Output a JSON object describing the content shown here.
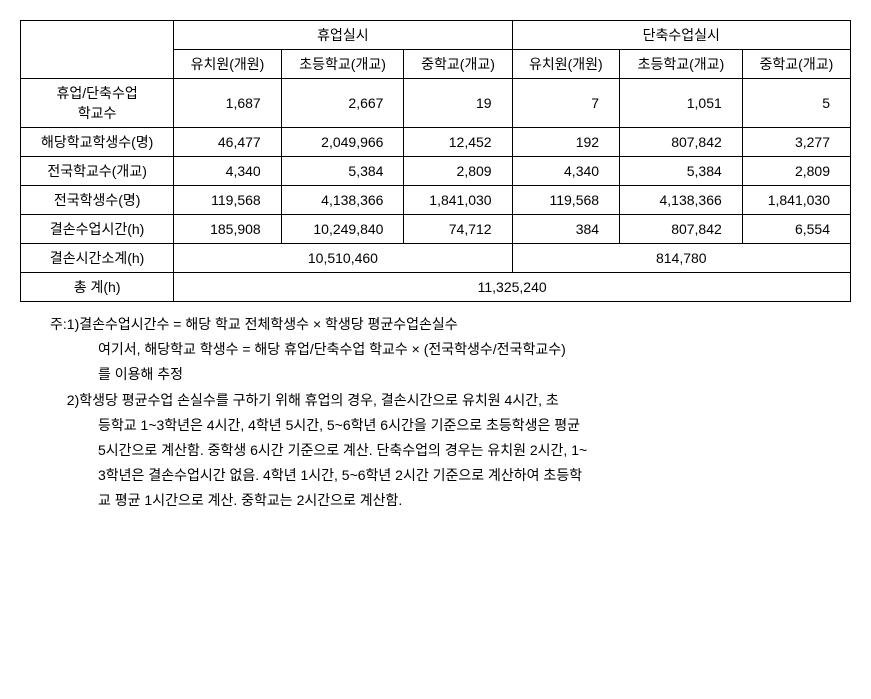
{
  "table": {
    "group_headers": [
      "휴업실시",
      "단축수업실시"
    ],
    "sub_headers": [
      "유치원(개원)",
      "초등학교(개교)",
      "중학교(개교)",
      "유치원(개원)",
      "초등학교(개교)",
      "중학교(개교)"
    ],
    "rows": [
      {
        "label": "휴업/단축수업\n학교수",
        "values": [
          "1,687",
          "2,667",
          "19",
          "7",
          "1,051",
          "5"
        ]
      },
      {
        "label": "해당학교학생수(명)",
        "values": [
          "46,477",
          "2,049,966",
          "12,452",
          "192",
          "807,842",
          "3,277"
        ]
      },
      {
        "label": "전국학교수(개교)",
        "values": [
          "4,340",
          "5,384",
          "2,809",
          "4,340",
          "5,384",
          "2,809"
        ]
      },
      {
        "label": "전국학생수(명)",
        "values": [
          "119,568",
          "4,138,366",
          "1,841,030",
          "119,568",
          "4,138,366",
          "1,841,030"
        ]
      },
      {
        "label": "결손수업시간(h)",
        "values": [
          "185,908",
          "10,249,840",
          "74,712",
          "384",
          "807,842",
          "6,554"
        ]
      }
    ],
    "subtotal": {
      "label": "결손시간소계(h)",
      "values": [
        "10,510,460",
        "814,780"
      ]
    },
    "total": {
      "label": "총 계(h)",
      "value": "11,325,240"
    }
  },
  "notes": {
    "prefix": "주: ",
    "items": [
      {
        "num": "1) ",
        "lines": [
          "결손수업시간수 = 해당 학교 전체학생수 × 학생당 평균수업손실수",
          "여기서, 해당학교 학생수 = 해당 휴업/단축수업 학교수 × (전국학생수/전국학교수)",
          "를 이용해 추정"
        ]
      },
      {
        "num": "2) ",
        "lines": [
          "학생당 평균수업 손실수를 구하기 위해 휴업의 경우, 결손시간으로 유치원 4시간, 초",
          "등학교 1~3학년은 4시간, 4학년 5시간, 5~6학년 6시간을 기준으로 초등학생은 평균",
          "5시간으로 계산함. 중학생 6시간 기준으로 계산. 단축수업의 경우는 유치원 2시간, 1~",
          "3학년은 결손수업시간 없음. 4학년 1시간, 5~6학년 2시간 기준으로 계산하여 초등학",
          "교 평균 1시간으로 계산. 중학교는 2시간으로 계산함."
        ]
      }
    ]
  }
}
